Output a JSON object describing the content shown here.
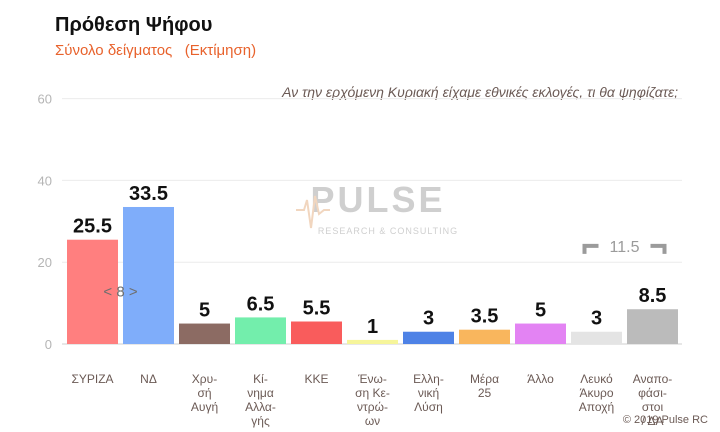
{
  "header": {
    "title": "Πρόθεση Ψήφου",
    "subtitle": "Σύνολο δείγματος   (Εκτίμηση)",
    "question": "Αν την ερχόμενη Κυριακή είχαμε εθνικές εκλογές, τι θα ψηφίζατε;"
  },
  "watermark": {
    "brand": "PULSE",
    "tagline": "RESEARCH & CONSULTING"
  },
  "credit": "© 2019 Pulse RC",
  "chart_data": {
    "type": "bar",
    "ylim": [
      0,
      60
    ],
    "yticks": [
      0,
      20,
      40,
      60
    ],
    "grid": true,
    "categories": [
      [
        "ΣΥΡΙΖΑ"
      ],
      [
        "ΝΔ"
      ],
      [
        "Χρυ-",
        "σή",
        "Αυγή"
      ],
      [
        "Κί-",
        "νημα",
        "Αλλα-",
        "γής"
      ],
      [
        "ΚΚΕ"
      ],
      [
        "Ένω-",
        "ση Κε-",
        "ντρώ-",
        "ων"
      ],
      [
        "Ελλη-",
        "νική",
        "Λύση"
      ],
      [
        "Μέρα",
        "25"
      ],
      [
        "Άλλο"
      ],
      [
        "Λευκό",
        "Άκυρο",
        "Αποχή"
      ],
      [
        "Αναπο-",
        "φάσι-",
        "στοι",
        "/ ΔΑ"
      ]
    ],
    "values": [
      25.5,
      33.5,
      5,
      6.5,
      5.5,
      1,
      3,
      3.5,
      5,
      3,
      8.5
    ],
    "value_labels": [
      "25.5",
      "33.5",
      "5",
      "6.5",
      "5.5",
      "1",
      "3",
      "3.5",
      "5",
      "3",
      "8.5"
    ],
    "colors": [
      "#ff7f7f",
      "#7fadfa",
      "#8c6b63",
      "#73eeac",
      "#f95c5c",
      "#f6f59a",
      "#4e82e6",
      "#f9b65d",
      "#e383f3",
      "#e4e4e4",
      "#bbbbbb"
    ],
    "gap_annotation": "< 8 >",
    "bracket_annotation": "11.5"
  }
}
